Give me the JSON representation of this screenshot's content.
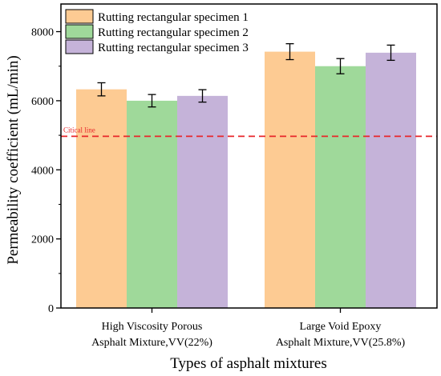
{
  "chart_data": {
    "type": "bar",
    "categories": [
      [
        "High Viscosity Porous",
        "Asphalt Mixture,VV(22%)"
      ],
      [
        "Large Void Epoxy",
        "Asphalt Mixture,VV(25.8%)"
      ]
    ],
    "series": [
      {
        "name": "Rutting rectangular specimen 1",
        "color": "#fdcb93",
        "values": [
          6330,
          7420
        ],
        "errors": [
          190,
          230
        ]
      },
      {
        "name": "Rutting rectangular specimen 2",
        "color": "#9fd99a",
        "values": [
          6000,
          7000
        ],
        "errors": [
          180,
          220
        ]
      },
      {
        "name": "Rutting rectangular specimen 3",
        "color": "#c5b3d9",
        "values": [
          6140,
          7390
        ],
        "errors": [
          180,
          220
        ]
      }
    ],
    "xlabel": "Types of asphalt mixtures",
    "ylabel": "Permeability coefficient (mL/min)",
    "ylim": [
      0,
      8800
    ],
    "yticks": [
      0,
      2000,
      4000,
      6000,
      8000
    ],
    "yticks_labels": [
      "0",
      "2000",
      "4000",
      "6000",
      "8000"
    ],
    "reference_line": {
      "value": 4970,
      "label": "Citical line",
      "color": "#e8262a",
      "style": "dashed"
    },
    "legend": {
      "placement": "top-left"
    },
    "grid": false
  }
}
